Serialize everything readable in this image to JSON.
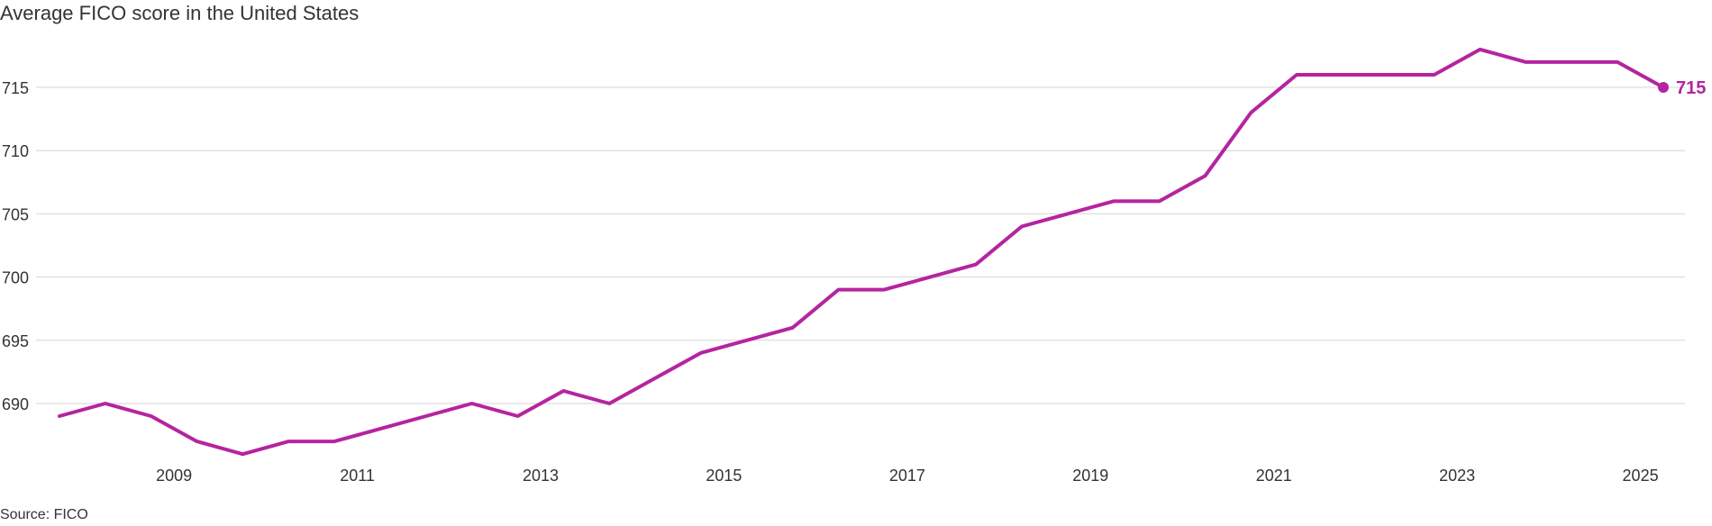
{
  "title": "Average FICO score in the United States",
  "source": "Source: FICO",
  "chart_data": {
    "type": "line",
    "title": "Average FICO score in the United States",
    "xlabel": "",
    "ylabel": "",
    "xlim": [
      2007.75,
      2025.25
    ],
    "ylim": [
      686,
      718
    ],
    "y_ticks": [
      690,
      695,
      700,
      705,
      710,
      715
    ],
    "x_ticks": [
      2009,
      2011,
      2013,
      2015,
      2017,
      2019,
      2021,
      2023,
      2025
    ],
    "grid": "horizontal",
    "legend": "none",
    "color": "#b5249f",
    "series": [
      {
        "x": [
          2007.75,
          2008.25,
          2008.75,
          2009.25,
          2009.75,
          2010.25,
          2010.75,
          2011.25,
          2011.75,
          2012.25,
          2012.75,
          2013.25,
          2013.75,
          2014.25,
          2014.75,
          2015.25,
          2015.75,
          2016.25,
          2016.75,
          2017.25,
          2017.75,
          2018.25,
          2018.75,
          2019.25,
          2019.75,
          2020.25,
          2020.75,
          2021.25,
          2021.75,
          2022.25,
          2022.75,
          2023.25,
          2023.75,
          2024.25,
          2024.75,
          2025.0,
          2025.25
        ],
        "values": [
          689,
          690,
          689,
          687,
          686,
          687,
          687,
          688,
          689,
          690,
          689,
          691,
          690,
          692,
          694,
          695,
          696,
          699,
          699,
          700,
          701,
          704,
          705,
          706,
          706,
          708,
          713,
          716,
          716,
          716,
          716,
          718,
          717,
          717,
          717,
          716,
          715
        ]
      }
    ],
    "end_label": "715"
  }
}
